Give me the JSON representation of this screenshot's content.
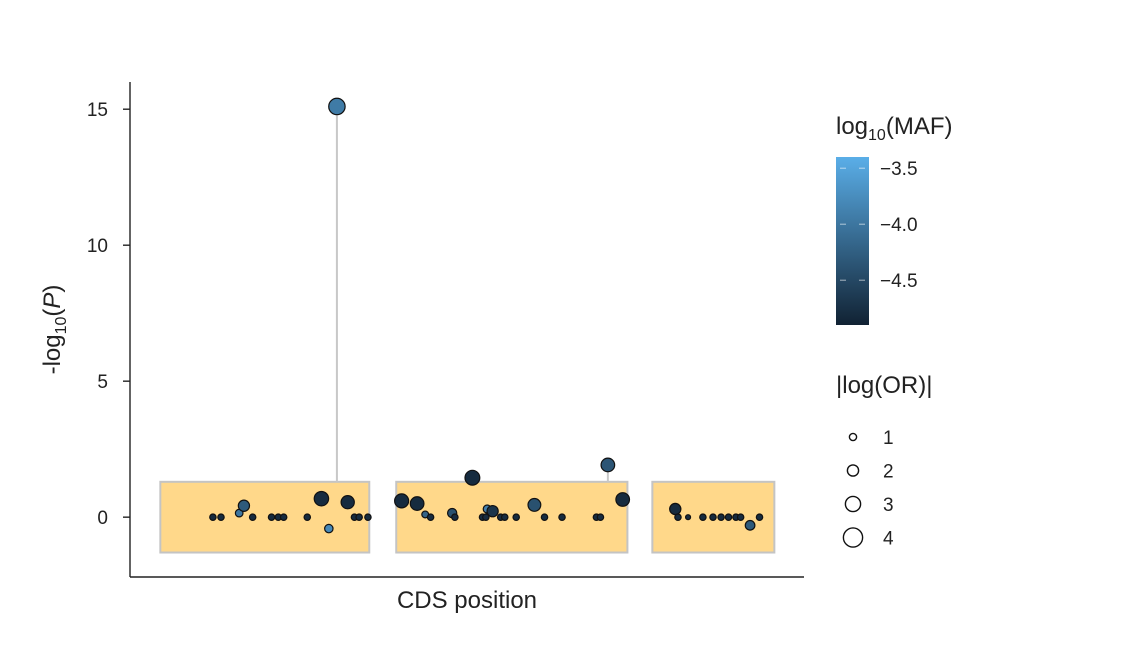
{
  "chart_data": {
    "type": "scatter",
    "xlabel": "CDS position",
    "ylabel": {
      "prefix": "-log",
      "sub": "10",
      "mid": "(",
      "var": "P",
      "suffix": ")"
    },
    "ylim": [
      -2.2,
      16
    ],
    "yticks": [
      0,
      5,
      10,
      15
    ],
    "xlim": [
      0,
      100
    ],
    "grid": false,
    "exons": [
      {
        "name": "",
        "start": 4.5,
        "end": 35.5
      },
      {
        "name": "",
        "start": 39.5,
        "end": 73.8
      },
      {
        "name": "",
        "start": 77.5,
        "end": 95.6
      }
    ],
    "exon_ylim": [
      -1.3,
      1.3
    ],
    "series": [
      {
        "name": "",
        "points": [
          {
            "x": 12.3,
            "y": 0,
            "maf": -4.8,
            "or": 0.8
          },
          {
            "x": 13.5,
            "y": 0,
            "maf": -4.8,
            "or": 0.8
          },
          {
            "x": 16.2,
            "y": 0.15,
            "maf": -4.0,
            "or": 1.1
          },
          {
            "x": 16.9,
            "y": 0.42,
            "maf": -4.3,
            "or": 2.0
          },
          {
            "x": 18.2,
            "y": 0,
            "maf": -4.8,
            "or": 0.8
          },
          {
            "x": 21.0,
            "y": 0,
            "maf": -4.8,
            "or": 0.8
          },
          {
            "x": 22.0,
            "y": 0,
            "maf": -4.8,
            "or": 0.8
          },
          {
            "x": 22.8,
            "y": 0,
            "maf": -4.8,
            "or": 0.8
          },
          {
            "x": 26.3,
            "y": 0,
            "maf": -4.8,
            "or": 0.8
          },
          {
            "x": 28.4,
            "y": 0.68,
            "maf": -4.8,
            "or": 2.8
          },
          {
            "x": 29.5,
            "y": -0.42,
            "maf": -3.8,
            "or": 1.3
          },
          {
            "x": 30.7,
            "y": 15.1,
            "maf": -3.95,
            "or": 3.3,
            "stem": true
          },
          {
            "x": 32.3,
            "y": 0.55,
            "maf": -4.8,
            "or": 2.5
          },
          {
            "x": 33.3,
            "y": 0,
            "maf": -4.8,
            "or": 0.8
          },
          {
            "x": 34.0,
            "y": 0,
            "maf": -4.8,
            "or": 0.8
          },
          {
            "x": 35.3,
            "y": 0,
            "maf": -4.8,
            "or": 0.8
          },
          {
            "x": 40.3,
            "y": 0.6,
            "maf": -4.8,
            "or": 2.7
          },
          {
            "x": 42.6,
            "y": 0.5,
            "maf": -4.8,
            "or": 2.6
          },
          {
            "x": 43.8,
            "y": 0.1,
            "maf": -4.2,
            "or": 0.9
          },
          {
            "x": 44.6,
            "y": 0,
            "maf": -4.8,
            "or": 0.8
          },
          {
            "x": 47.8,
            "y": 0.15,
            "maf": -4.4,
            "or": 1.5
          },
          {
            "x": 48.2,
            "y": 0,
            "maf": -4.8,
            "or": 0.8
          },
          {
            "x": 50.8,
            "y": 1.45,
            "maf": -4.8,
            "or": 2.9
          },
          {
            "x": 52.3,
            "y": 0,
            "maf": -4.8,
            "or": 0.8
          },
          {
            "x": 53.0,
            "y": 0.3,
            "maf": -3.9,
            "or": 1.2
          },
          {
            "x": 53.8,
            "y": 0.22,
            "maf": -4.7,
            "or": 2.0
          },
          {
            "x": 52.8,
            "y": 0,
            "maf": -4.8,
            "or": 0.8
          },
          {
            "x": 55.0,
            "y": 0,
            "maf": -4.8,
            "or": 0.8
          },
          {
            "x": 55.6,
            "y": 0,
            "maf": -4.8,
            "or": 0.8
          },
          {
            "x": 57.3,
            "y": 0,
            "maf": -4.8,
            "or": 0.8
          },
          {
            "x": 60.0,
            "y": 0.45,
            "maf": -4.4,
            "or": 2.4
          },
          {
            "x": 61.5,
            "y": 0,
            "maf": -4.8,
            "or": 0.8
          },
          {
            "x": 64.1,
            "y": 0,
            "maf": -4.8,
            "or": 0.8
          },
          {
            "x": 69.2,
            "y": 0,
            "maf": -4.8,
            "or": 0.8
          },
          {
            "x": 69.8,
            "y": 0,
            "maf": -4.8,
            "or": 0.8
          },
          {
            "x": 70.9,
            "y": 1.92,
            "maf": -4.35,
            "or": 2.6,
            "stem": true
          },
          {
            "x": 73.1,
            "y": 0.65,
            "maf": -4.8,
            "or": 2.6
          },
          {
            "x": 80.9,
            "y": 0.3,
            "maf": -4.8,
            "or": 2.0
          },
          {
            "x": 81.3,
            "y": 0,
            "maf": -4.8,
            "or": 0.8
          },
          {
            "x": 82.8,
            "y": 0,
            "maf": -4.8,
            "or": 0.45
          },
          {
            "x": 85.0,
            "y": 0,
            "maf": -4.8,
            "or": 0.8
          },
          {
            "x": 86.5,
            "y": 0,
            "maf": -4.8,
            "or": 0.8
          },
          {
            "x": 87.7,
            "y": 0,
            "maf": -4.8,
            "or": 0.8
          },
          {
            "x": 88.8,
            "y": 0,
            "maf": -4.8,
            "or": 0.8
          },
          {
            "x": 89.9,
            "y": 0,
            "maf": -4.8,
            "or": 0.8
          },
          {
            "x": 90.6,
            "y": 0,
            "maf": -4.8,
            "or": 0.8
          },
          {
            "x": 92.0,
            "y": -0.3,
            "maf": -4.3,
            "or": 1.6
          },
          {
            "x": 93.4,
            "y": 0,
            "maf": -4.8,
            "or": 0.8
          }
        ]
      }
    ],
    "colorbar": {
      "title": {
        "prefix": "log",
        "sub": "10",
        "suffix": "(MAF)"
      },
      "range": [
        -4.9,
        -3.4
      ],
      "ticks": [
        -3.5,
        -4.0,
        -4.5
      ],
      "tick_labels": [
        "−3.5",
        "−4.0",
        "−4.5"
      ],
      "colors": [
        "#112233",
        "#5aaee8"
      ]
    },
    "size_legend": {
      "title": "|log(OR)|",
      "items": [
        {
          "label": "1",
          "value": 1
        },
        {
          "label": "2",
          "value": 2
        },
        {
          "label": "3",
          "value": 3
        },
        {
          "label": "4",
          "value": 4
        }
      ]
    },
    "colors": {
      "exon_fill": "#ffd88a",
      "exon_stroke": "#c4c4c4",
      "stem": "#c8c8c8",
      "axis": "#222222",
      "marker_edge": "#111111"
    }
  }
}
